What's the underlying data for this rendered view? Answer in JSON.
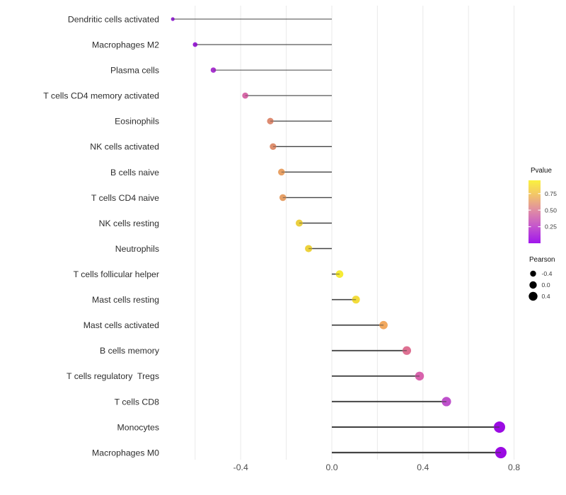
{
  "chart_data": {
    "type": "lollipop",
    "title": "",
    "xlabel": "",
    "ylabel": "",
    "x_axis": {
      "ticks": [
        -0.4,
        0.0,
        0.4,
        0.8
      ],
      "tick_labels": [
        "-0.4",
        "0.0",
        "0.4",
        "0.8"
      ],
      "gridlines": [
        -0.6,
        -0.4,
        -0.2,
        0.0,
        0.2,
        0.4,
        0.6,
        0.8
      ],
      "xlim": [
        -0.77,
        0.85
      ]
    },
    "grid": "vertical-only",
    "legend_position": "right",
    "points": [
      {
        "category": "Dendritic cells activated",
        "pearson": -0.698,
        "color": "#9327D1",
        "radius": 2.6
      },
      {
        "category": "Macrophages M2",
        "pearson": -0.6,
        "color": "#9A22D5",
        "radius": 3.3
      },
      {
        "category": "Plasma cells",
        "pearson": -0.52,
        "color": "#A934D0",
        "radius": 3.8
      },
      {
        "category": "T cells CD4 memory activated",
        "pearson": -0.38,
        "color": "#D768A8",
        "radius": 4.3
      },
      {
        "category": "Eosinophils",
        "pearson": -0.27,
        "color": "#DD8B71",
        "radius": 4.6
      },
      {
        "category": "NK cells activated",
        "pearson": -0.258,
        "color": "#DE8F6E",
        "radius": 4.65
      },
      {
        "category": "B cells naive",
        "pearson": -0.221,
        "color": "#E8A165",
        "radius": 4.8
      },
      {
        "category": "T cells CD4 naive",
        "pearson": -0.215,
        "color": "#E6A067",
        "radius": 4.8
      },
      {
        "category": "NK cells resting",
        "pearson": -0.143,
        "color": "#EBCF40",
        "radius": 5.0
      },
      {
        "category": "Neutrophils",
        "pearson": -0.102,
        "color": "#EDD23C",
        "radius": 5.1
      },
      {
        "category": "T cells follicular helper",
        "pearson": 0.034,
        "color": "#F6EB36",
        "radius": 5.35
      },
      {
        "category": "Mast cells resting",
        "pearson": 0.106,
        "color": "#F3DC3B",
        "radius": 5.55
      },
      {
        "category": "Mast cells activated",
        "pearson": 0.227,
        "color": "#F2A95F",
        "radius": 5.85
      },
      {
        "category": "B cells memory",
        "pearson": 0.329,
        "color": "#DE7092",
        "radius": 6.1
      },
      {
        "category": "T cells regulatory  Tregs",
        "pearson": 0.385,
        "color": "#D862AC",
        "radius": 6.25
      },
      {
        "category": "T cells CD8",
        "pearson": 0.503,
        "color": "#BE50CB",
        "radius": 6.6
      },
      {
        "category": "Monocytes",
        "pearson": 0.736,
        "color": "#9B0BE3",
        "radius": 8.0
      },
      {
        "category": "Macrophages M0",
        "pearson": 0.742,
        "color": "#9A0AE2",
        "radius": 8.05
      }
    ],
    "legend_pvalue": {
      "title": "Pvalue",
      "range": [
        0,
        0.95
      ],
      "ticks": [
        {
          "value": 0.75,
          "label": "0.75"
        },
        {
          "value": 0.5,
          "label": "0.50"
        },
        {
          "value": 0.25,
          "label": "0.25"
        }
      ],
      "gradient": [
        {
          "pos": 0.0,
          "color": "#A016EC"
        },
        {
          "pos": 0.28,
          "color": "#C658CB"
        },
        {
          "pos": 0.53,
          "color": "#E08EA2"
        },
        {
          "pos": 0.78,
          "color": "#F3C767"
        },
        {
          "pos": 1.0,
          "color": "#FAF13F"
        }
      ]
    },
    "legend_pearson": {
      "title": "Pearson",
      "items": [
        {
          "label": "-0.4",
          "radius": 4.2
        },
        {
          "label": "0.0",
          "radius": 5.2
        },
        {
          "label": "0.4",
          "radius": 6.2
        }
      ],
      "dot_color": "#000000"
    },
    "style": {
      "stem_color": "#444444",
      "gridline_color": "#e9e9e9",
      "background": "#ffffff"
    }
  }
}
